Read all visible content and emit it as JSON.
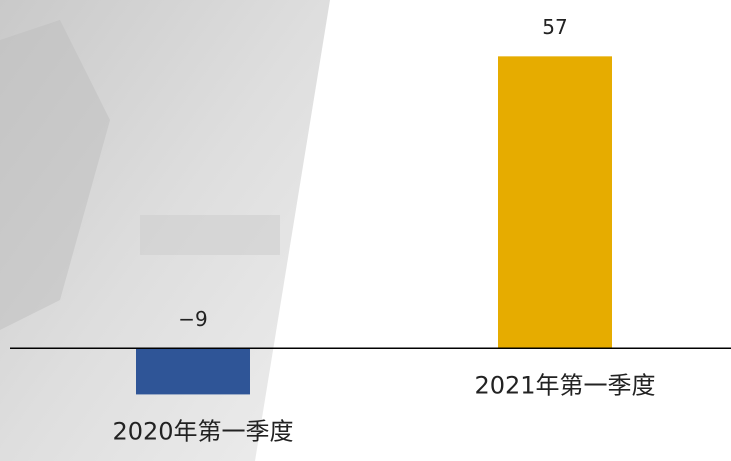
{
  "chart_data": {
    "type": "bar",
    "categories": [
      "2020年第一季度",
      "2021年第一季度"
    ],
    "values": [
      -9,
      57
    ],
    "value_labels": [
      "−9",
      "57"
    ],
    "colors": [
      "#2f5597",
      "#e6ac00"
    ],
    "ylim": [
      -22,
      68
    ]
  }
}
